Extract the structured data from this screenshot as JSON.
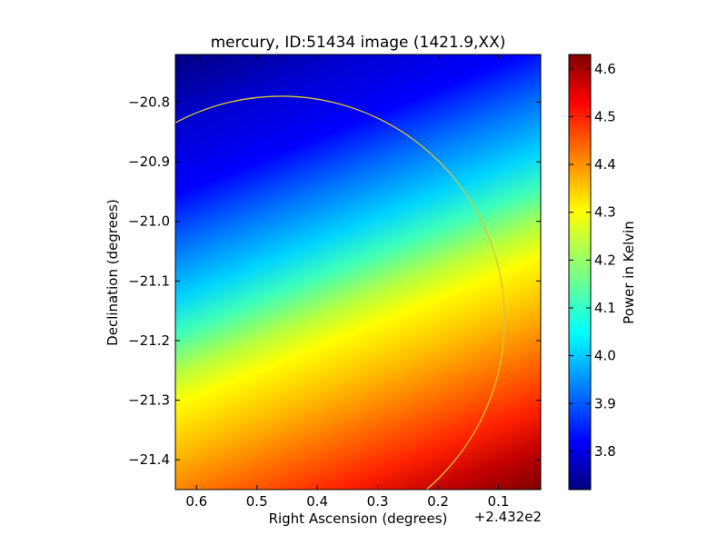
{
  "chart_data": {
    "type": "heatmap",
    "title": "mercury, ID:51434 image (1421.9,XX)",
    "xlabel": "Right Ascension (degrees)",
    "ylabel": "Declination (degrees)",
    "x_offset_label": "+2.432e2",
    "x_ticks": [
      "0.6",
      "0.5",
      "0.4",
      "0.3",
      "0.2",
      "0.1"
    ],
    "y_ticks": [
      "−20.8",
      "−20.9",
      "−21.0",
      "−21.1",
      "−21.2",
      "−21.3",
      "−21.4"
    ],
    "xlim": [
      0.635,
      0.03
    ],
    "ylim": [
      -21.45,
      -20.72
    ],
    "colorbar": {
      "label": "Power in Kelvin",
      "range": [
        3.72,
        4.63
      ],
      "ticks": [
        "3.8",
        "3.9",
        "4.0",
        "4.1",
        "4.2",
        "4.3",
        "4.4",
        "4.5",
        "4.6"
      ]
    },
    "circle": {
      "center": [
        0.46,
        -21.165
      ],
      "radius_dec": 0.375,
      "color": "#d4c43a"
    },
    "field_samples": [
      {
        "x": 0.62,
        "y": -20.75,
        "value": 3.73
      },
      {
        "x": 0.45,
        "y": -20.9,
        "value": 3.8
      },
      {
        "x": 0.3,
        "y": -21.0,
        "value": 4.05
      },
      {
        "x": 0.5,
        "y": -21.12,
        "value": 4.05
      },
      {
        "x": 0.4,
        "y": -21.2,
        "value": 4.27
      },
      {
        "x": 0.5,
        "y": -21.35,
        "value": 4.45
      },
      {
        "x": 0.25,
        "y": -21.43,
        "value": 4.63
      }
    ]
  }
}
